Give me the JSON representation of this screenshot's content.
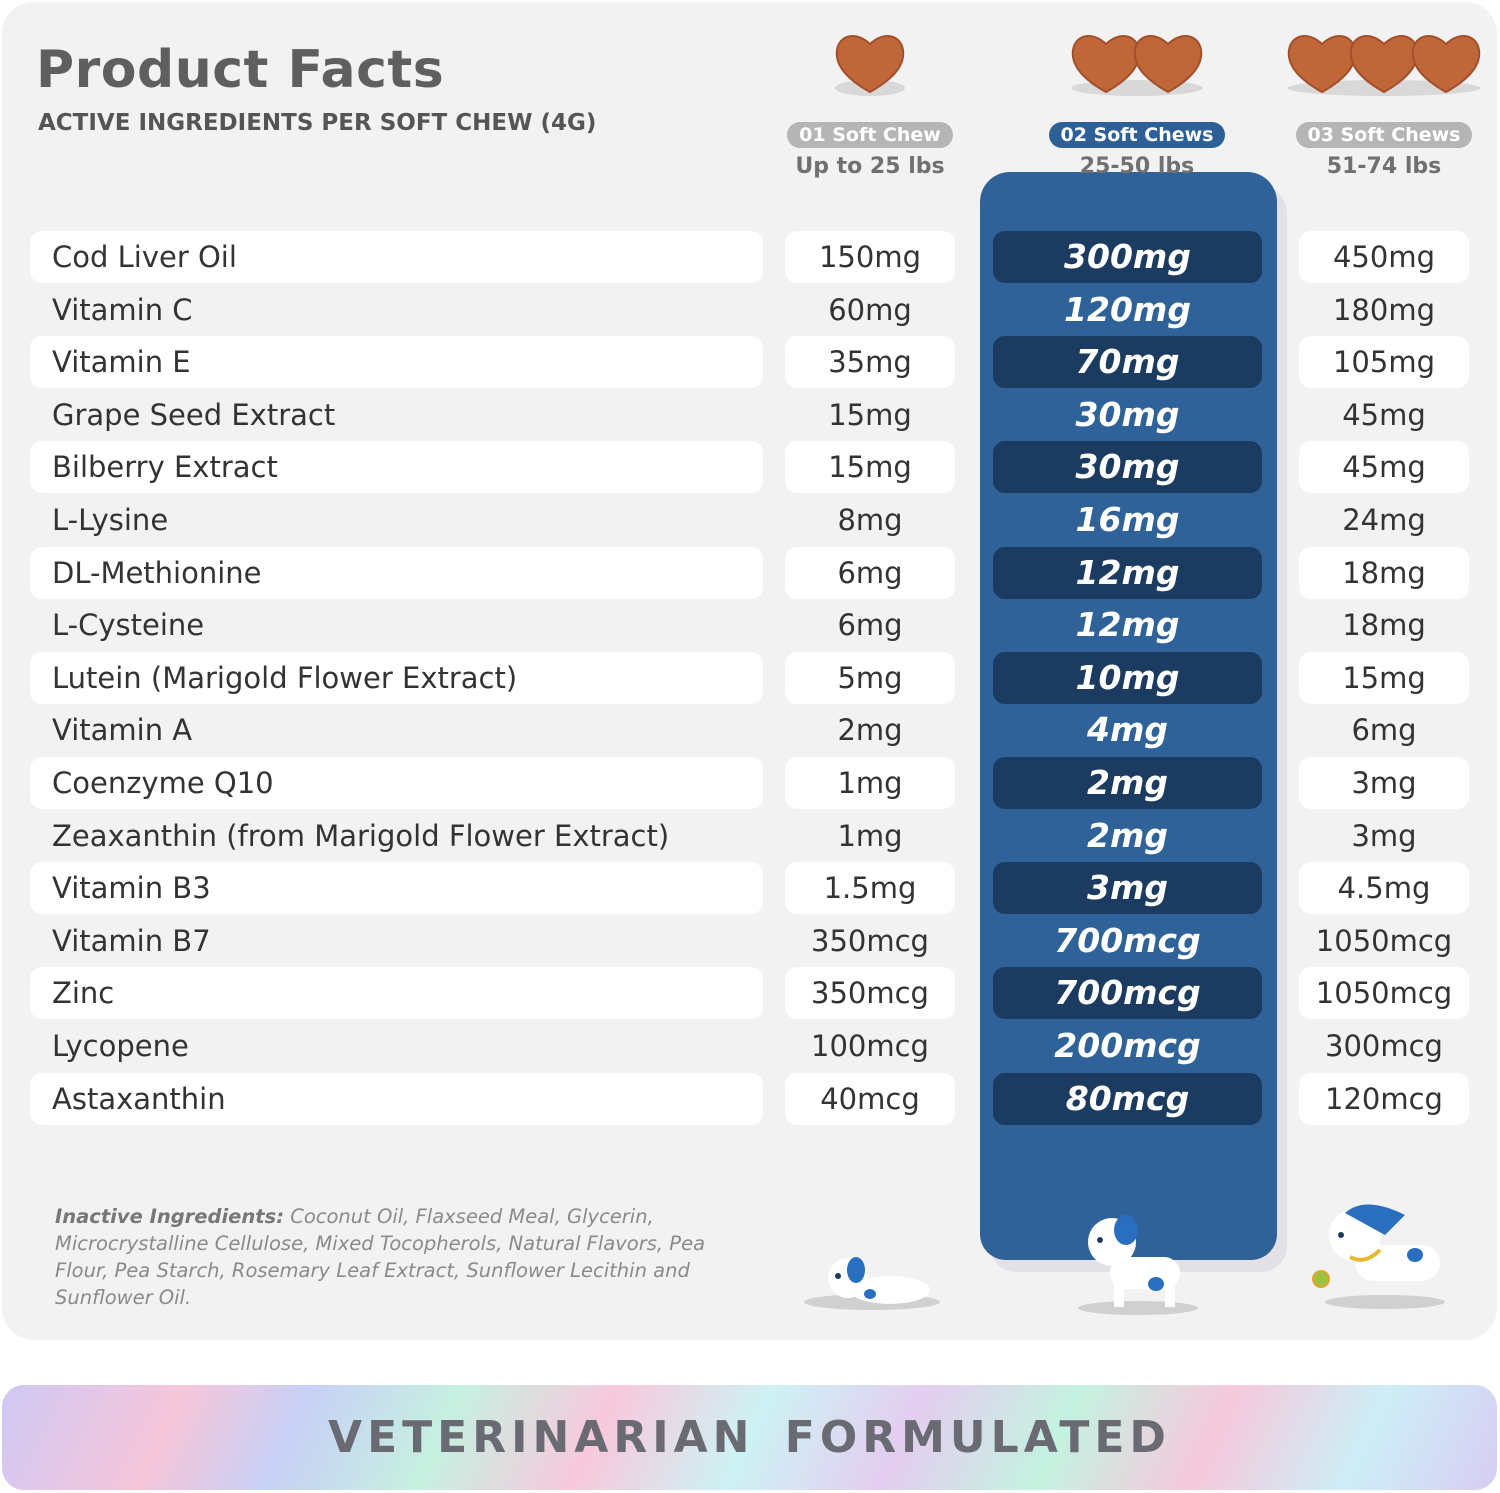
{
  "header": {
    "title": "Product Facts",
    "subtitle": "ACTIVE INGREDIENTS PER SOFT CHEW (4G)"
  },
  "columns": [
    {
      "badge": "01 Soft Chew",
      "weight": "Up to 25 lbs",
      "hearts": 1,
      "highlighted": false
    },
    {
      "badge": "02 Soft Chews",
      "weight": "25-50 lbs",
      "hearts": 2,
      "highlighted": true
    },
    {
      "badge": "03 Soft Chews",
      "weight": "51-74 lbs",
      "hearts": 3,
      "highlighted": false
    }
  ],
  "ingredients": [
    {
      "name": "Cod Liver Oil",
      "values": [
        "150mg",
        "300mg",
        "450mg"
      ]
    },
    {
      "name": "Vitamin C",
      "values": [
        "60mg",
        "120mg",
        "180mg"
      ]
    },
    {
      "name": "Vitamin E",
      "values": [
        "35mg",
        "70mg",
        "105mg"
      ]
    },
    {
      "name": "Grape Seed Extract",
      "values": [
        "15mg",
        "30mg",
        "45mg"
      ]
    },
    {
      "name": "Bilberry Extract",
      "values": [
        "15mg",
        "30mg",
        "45mg"
      ]
    },
    {
      "name": "L-Lysine",
      "values": [
        "8mg",
        "16mg",
        "24mg"
      ]
    },
    {
      "name": "DL-Methionine",
      "values": [
        "6mg",
        "12mg",
        "18mg"
      ]
    },
    {
      "name": "L-Cysteine",
      "values": [
        "6mg",
        "12mg",
        "18mg"
      ]
    },
    {
      "name": "Lutein (Marigold Flower Extract)",
      "values": [
        "5mg",
        "10mg",
        "15mg"
      ]
    },
    {
      "name": "Vitamin A",
      "values": [
        "2mg",
        "4mg",
        "6mg"
      ]
    },
    {
      "name": "Coenzyme Q10",
      "values": [
        "1mg",
        "2mg",
        "3mg"
      ]
    },
    {
      "name": "Zeaxanthin (from Marigold Flower Extract)",
      "values": [
        "1mg",
        "2mg",
        "3mg"
      ]
    },
    {
      "name": "Vitamin B3",
      "values": [
        "1.5mg",
        "3mg",
        "4.5mg"
      ]
    },
    {
      "name": "Vitamin B7",
      "values": [
        "350mcg",
        "700mcg",
        "1050mcg"
      ]
    },
    {
      "name": "Zinc",
      "values": [
        "350mcg",
        "700mcg",
        "1050mcg"
      ]
    },
    {
      "name": "Lycopene",
      "values": [
        "100mcg",
        "200mcg",
        "300mcg"
      ]
    },
    {
      "name": "Astaxanthin",
      "values": [
        "40mcg",
        "80mcg",
        "120mcg"
      ]
    }
  ],
  "inactive": {
    "label": "Inactive Ingredients:",
    "text": "Coconut Oil, Flaxseed Meal, Glycerin, Microcrystalline Cellulose, Mixed Tocopherols, Natural Flavors, Pea Flour, Pea Starch, Rosemary Leaf Extract, Sunflower Lecithin and Sunflower Oil."
  },
  "banner": {
    "text": "VETERINARIAN FORMULATED"
  },
  "colors": {
    "accent": "#2e6299",
    "accent_dark": "#1b3b60",
    "chew": "#c0673a",
    "badge_gray": "#b5b5b5"
  },
  "icons": [
    "heart-chew-icon",
    "puppy-icon",
    "dog-icon",
    "dog-with-ball-icon"
  ]
}
